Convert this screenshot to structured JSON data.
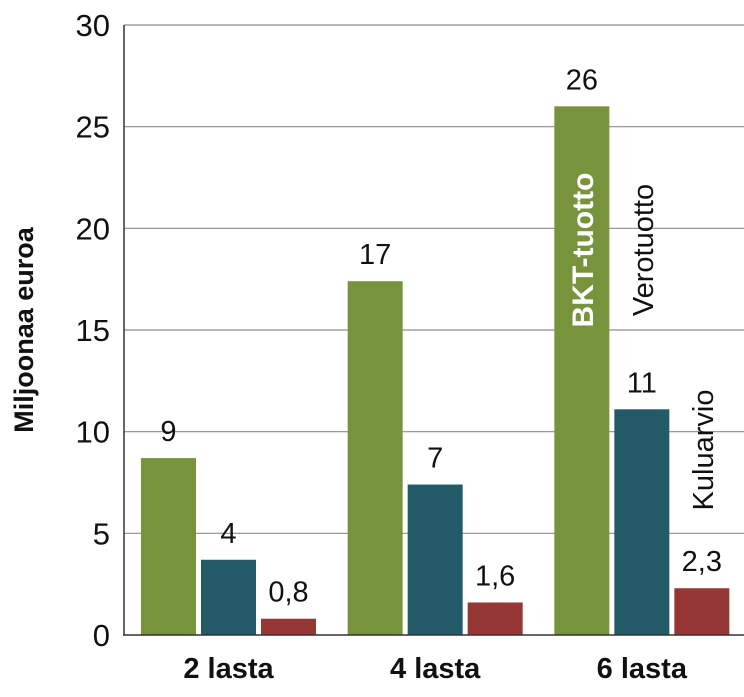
{
  "chart_data": {
    "type": "bar",
    "ylabel": "Miljoonaa euroa",
    "ylim": [
      0,
      30
    ],
    "yticks": [
      "0",
      "5",
      "10",
      "15",
      "20",
      "25",
      "30"
    ],
    "grid": true,
    "categories": [
      "2 lasta",
      "4 lasta",
      "6 lasta"
    ],
    "series": [
      {
        "name": "BKT-tuotto",
        "color": "#77933c",
        "values": [
          8.7,
          17.4,
          26
        ],
        "labels": [
          "9",
          "17",
          "26"
        ]
      },
      {
        "name": "Verotuotto",
        "color": "#235a68",
        "values": [
          3.7,
          7.4,
          11.1
        ],
        "labels": [
          "4",
          "7",
          "11"
        ]
      },
      {
        "name": "Kuluarvio",
        "color": "#953735",
        "values": [
          0.8,
          1.6,
          2.3
        ],
        "labels": [
          "0,8",
          "1,6",
          "2,3"
        ]
      }
    ]
  }
}
